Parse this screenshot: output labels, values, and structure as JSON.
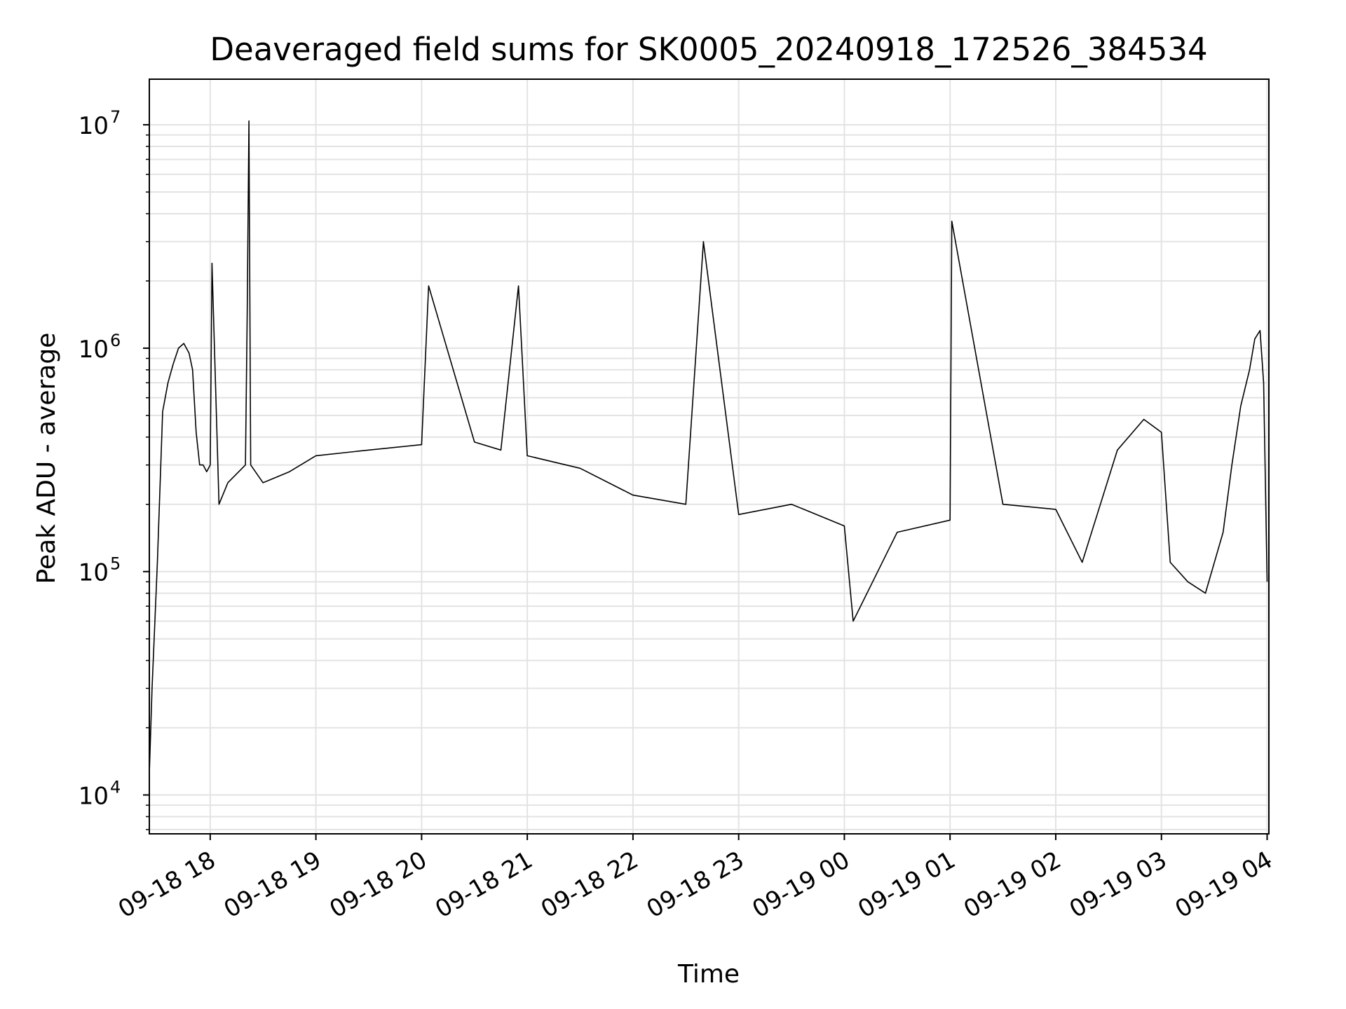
{
  "chart_data": {
    "type": "line",
    "title": "Deaveraged field sums for SK0005_20240918_172526_384534",
    "xlabel": "Time",
    "ylabel": "Peak ADU - average",
    "y_scale": "log",
    "ylim": [
      6700,
      16000000
    ],
    "xlim": [
      "2024-09-18 17:25:26",
      "2024-09-19 04:01:00"
    ],
    "x_ticks": [
      "2024-09-18 18:00",
      "2024-09-18 19:00",
      "2024-09-18 20:00",
      "2024-09-18 21:00",
      "2024-09-18 22:00",
      "2024-09-18 23:00",
      "2024-09-19 00:00",
      "2024-09-19 01:00",
      "2024-09-19 02:00",
      "2024-09-19 03:00",
      "2024-09-19 04:00"
    ],
    "x_tick_labels": [
      "09-18 18",
      "09-18 19",
      "09-18 20",
      "09-18 21",
      "09-18 22",
      "09-18 23",
      "09-19 00",
      "09-19 01",
      "09-19 02",
      "09-19 03",
      "09-19 04"
    ],
    "y_ticks": [
      10000,
      100000,
      1000000,
      10000000
    ],
    "y_tick_labels": [
      {
        "base": "10",
        "exp": "4"
      },
      {
        "base": "10",
        "exp": "5"
      },
      {
        "base": "10",
        "exp": "6"
      },
      {
        "base": "10",
        "exp": "7"
      }
    ],
    "grid": true,
    "line_color": "#000000",
    "grid_color": "#e3e3e3",
    "series": [
      {
        "x": [
          "2024-09-18 17:25:30",
          "2024-09-18 17:27",
          "2024-09-18 17:30",
          "2024-09-18 17:33",
          "2024-09-18 17:36",
          "2024-09-18 17:39",
          "2024-09-18 17:42",
          "2024-09-18 17:45",
          "2024-09-18 17:48",
          "2024-09-18 17:50",
          "2024-09-18 17:52",
          "2024-09-18 17:54",
          "2024-09-18 17:56",
          "2024-09-18 17:58",
          "2024-09-18 18:00",
          "2024-09-18 18:01",
          "2024-09-18 18:05",
          "2024-09-18 18:10",
          "2024-09-18 18:20",
          "2024-09-18 18:21",
          "2024-09-18 18:22",
          "2024-09-18 18:23",
          "2024-09-18 18:30",
          "2024-09-18 18:45",
          "2024-09-18 19:00",
          "2024-09-18 19:30",
          "2024-09-18 20:00",
          "2024-09-18 20:04",
          "2024-09-18 20:30",
          "2024-09-18 20:45",
          "2024-09-18 20:55",
          "2024-09-18 21:00",
          "2024-09-18 21:30",
          "2024-09-18 22:00",
          "2024-09-18 22:30",
          "2024-09-18 22:40",
          "2024-09-18 23:00",
          "2024-09-18 23:30",
          "2024-09-19 00:00",
          "2024-09-19 00:05",
          "2024-09-19 00:30",
          "2024-09-19 01:00",
          "2024-09-19 01:01",
          "2024-09-19 01:30",
          "2024-09-19 02:00",
          "2024-09-19 02:15",
          "2024-09-19 02:35",
          "2024-09-19 02:50",
          "2024-09-19 03:00",
          "2024-09-19 03:05",
          "2024-09-19 03:15",
          "2024-09-19 03:25",
          "2024-09-19 03:35",
          "2024-09-19 03:40",
          "2024-09-19 03:45",
          "2024-09-19 03:50",
          "2024-09-19 03:53",
          "2024-09-19 03:56",
          "2024-09-19 03:58",
          "2024-09-19 04:00"
        ],
        "y": [
          13000,
          30000,
          110000,
          520000,
          700000,
          850000,
          1000000,
          1050000,
          950000,
          800000,
          420000,
          300000,
          300000,
          280000,
          300000,
          2400000,
          200000,
          250000,
          300000,
          1400000,
          10400000,
          300000,
          250000,
          280000,
          330000,
          350000,
          370000,
          1900000,
          380000,
          350000,
          1900000,
          330000,
          290000,
          220000,
          200000,
          3000000,
          180000,
          200000,
          160000,
          60000,
          150000,
          170000,
          3700000,
          200000,
          190000,
          110000,
          350000,
          480000,
          420000,
          110000,
          90000,
          80000,
          150000,
          300000,
          550000,
          800000,
          1100000,
          1200000,
          700000,
          90000
        ]
      }
    ]
  }
}
